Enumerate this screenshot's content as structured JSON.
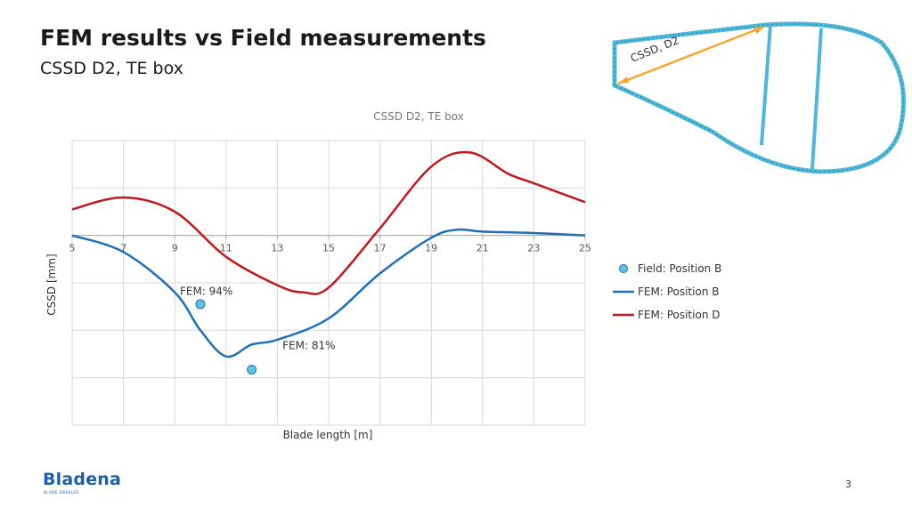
{
  "slide": {
    "title": "FEM results vs Field measurements",
    "subtitle": "CSSD D2, TE box",
    "page_number": "3"
  },
  "logo": {
    "text": "Bladena",
    "tagline": "BLADE ENABLER"
  },
  "diagram": {
    "label": "CSSD, D2",
    "shell_color": "#4fb8d8",
    "arrow_color": "#f0a830"
  },
  "chart_data": {
    "type": "line",
    "title": "CSSD D2, TE box",
    "xlabel": "Blade length [m]",
    "ylabel": "CSSD [mm]",
    "xlim": [
      5,
      25
    ],
    "ylim": [
      -4,
      2
    ],
    "x_ticks": [
      "5",
      "7",
      "9",
      "11",
      "13",
      "15",
      "17",
      "19",
      "21",
      "23",
      "25"
    ],
    "grid": true,
    "legend_position": "right",
    "series": [
      {
        "name": "Field:  Position B",
        "kind": "scatter",
        "color": "#5bc4e8",
        "x": [
          10,
          12
        ],
        "y": [
          -1.45,
          -2.83
        ]
      },
      {
        "name": "FEM:  Position B",
        "kind": "line",
        "color": "#1f6fb8",
        "x": [
          5,
          7,
          9,
          10,
          11,
          12,
          13,
          15,
          17,
          19,
          20,
          21,
          23,
          25
        ],
        "y": [
          0,
          -0.35,
          -1.2,
          -2.0,
          -2.55,
          -2.3,
          -2.2,
          -1.75,
          -0.8,
          -0.05,
          0.12,
          0.08,
          0.05,
          0
        ]
      },
      {
        "name": "FEM:  Position D",
        "kind": "line",
        "color": "#c0181c",
        "x": [
          5,
          7,
          9,
          11,
          13,
          14,
          15,
          17,
          19,
          20.5,
          22,
          23,
          25
        ],
        "y": [
          0.55,
          0.8,
          0.5,
          -0.45,
          -1.05,
          -1.2,
          -1.1,
          0.15,
          1.45,
          1.75,
          1.3,
          1.1,
          0.7
        ]
      }
    ],
    "annotations": [
      {
        "text": "FEM: 94%",
        "x": 9.2,
        "y": -1.25
      },
      {
        "text": "FEM: 81%",
        "x": 13.2,
        "y": -2.4
      }
    ]
  }
}
